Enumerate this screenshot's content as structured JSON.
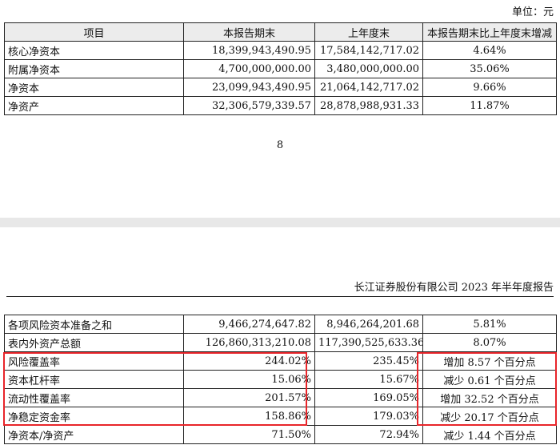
{
  "unit": "单位：元",
  "table1": {
    "headers": [
      "项目",
      "本报告期末",
      "上年度末",
      "本报告期末比上年度末增减"
    ],
    "rows": [
      [
        "核心净资本",
        "18,399,943,490.95",
        "17,584,142,717.02",
        "4.64%"
      ],
      [
        "附属净资本",
        "4,700,000,000.00",
        "3,480,000,000.00",
        "35.06%"
      ],
      [
        "净资本",
        "23,099,943,490.95",
        "21,064,142,717.02",
        "9.66%"
      ],
      [
        "净资产",
        "32,306,579,339.57",
        "28,878,988,931.33",
        "11.87%"
      ]
    ]
  },
  "page_number": "8",
  "report_header": "长江证券股份有限公司 2023 年半年度报告",
  "table2": {
    "rows": [
      [
        "各项风险资本准备之和",
        "9,466,274,647.82",
        "8,946,264,201.68",
        "5.81%"
      ],
      [
        "表内外资产总额",
        "126,860,313,210.08",
        "117,390,525,633.36",
        "8.07%"
      ],
      [
        "风险覆盖率",
        "244.02%",
        "235.45%",
        "增加 8.57 个百分点"
      ],
      [
        "资本杠杆率",
        "15.06%",
        "15.67%",
        "减少 0.61 个百分点"
      ],
      [
        "流动性覆盖率",
        "201.57%",
        "169.05%",
        "增加 32.52 个百分点"
      ],
      [
        "净稳定资金率",
        "158.86%",
        "179.03%",
        "减少 20.17 个百分点"
      ],
      [
        "净资本/净资产",
        "71.50%",
        "72.94%",
        "减少 1.44 个百分点"
      ]
    ]
  },
  "colors": {
    "highlight": "#e8252a",
    "header_bg": "#ececec",
    "page_gap": "#e8e8e8"
  }
}
